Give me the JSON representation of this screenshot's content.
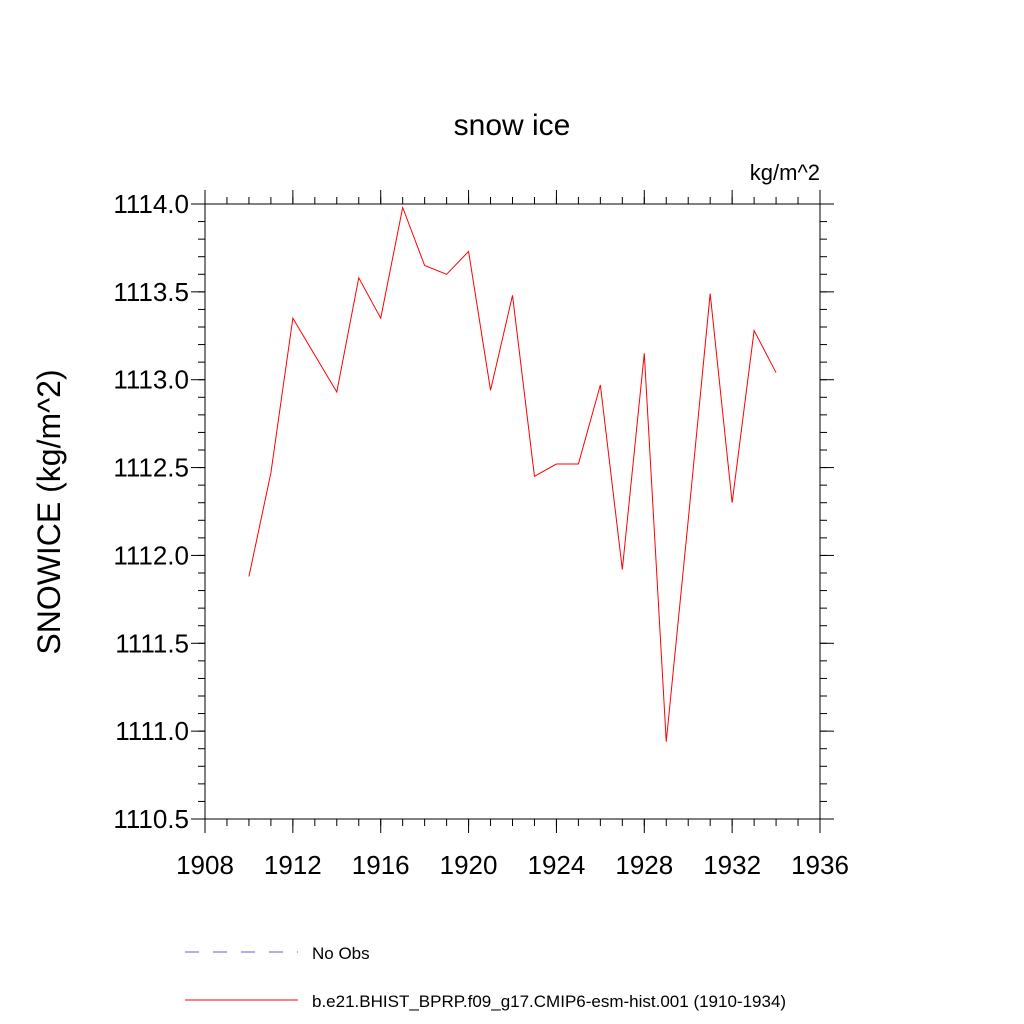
{
  "chart_data": {
    "type": "line",
    "title": "snow ice",
    "units": "kg/m^2",
    "xlabel": "",
    "ylabel": "SNOWICE  (kg/m^2)",
    "xlim": [
      1908,
      1936
    ],
    "ylim": [
      1110.5,
      1114.0
    ],
    "xticks": [
      1908,
      1912,
      1916,
      1920,
      1924,
      1928,
      1932,
      1936
    ],
    "xtick_labels": [
      "1908",
      "1912",
      "1916",
      "1920",
      "1924",
      "1928",
      "1932",
      "1936"
    ],
    "yticks": [
      1110.5,
      1111.0,
      1111.5,
      1112.0,
      1112.5,
      1113.0,
      1113.5,
      1114.0
    ],
    "ytick_labels": [
      "1110.5",
      "1111.0",
      "1111.5",
      "1112.0",
      "1112.5",
      "1113.0",
      "1113.5",
      "1114.0"
    ],
    "grid": false,
    "legend_position": "bottom",
    "series": [
      {
        "name": "b.e21.BHIST_BPRP.f09_g17.CMIP6-esm-hist.001 (1910-1934)",
        "color": "#ff0000",
        "style": "solid",
        "x": [
          1910,
          1911,
          1912,
          1913,
          1914,
          1915,
          1916,
          1917,
          1918,
          1919,
          1920,
          1921,
          1922,
          1923,
          1924,
          1925,
          1926,
          1927,
          1928,
          1929,
          1930,
          1931,
          1932,
          1933,
          1934
        ],
        "y": [
          1111.88,
          1112.47,
          1113.35,
          1113.14,
          1112.93,
          1113.58,
          1113.35,
          1113.98,
          1113.65,
          1113.6,
          1113.73,
          1112.94,
          1113.48,
          1112.45,
          1112.52,
          1112.52,
          1112.97,
          1111.92,
          1113.15,
          1110.94,
          1112.2,
          1113.49,
          1112.3,
          1113.28,
          1113.04
        ]
      }
    ],
    "legend": [
      {
        "label": "No Obs",
        "color": "#6a5acd",
        "style": "dashed"
      },
      {
        "label": "b.e21.BHIST_BPRP.f09_g17.CMIP6-esm-hist.001 (1910-1934)",
        "color": "#ff0000",
        "style": "solid"
      }
    ]
  }
}
